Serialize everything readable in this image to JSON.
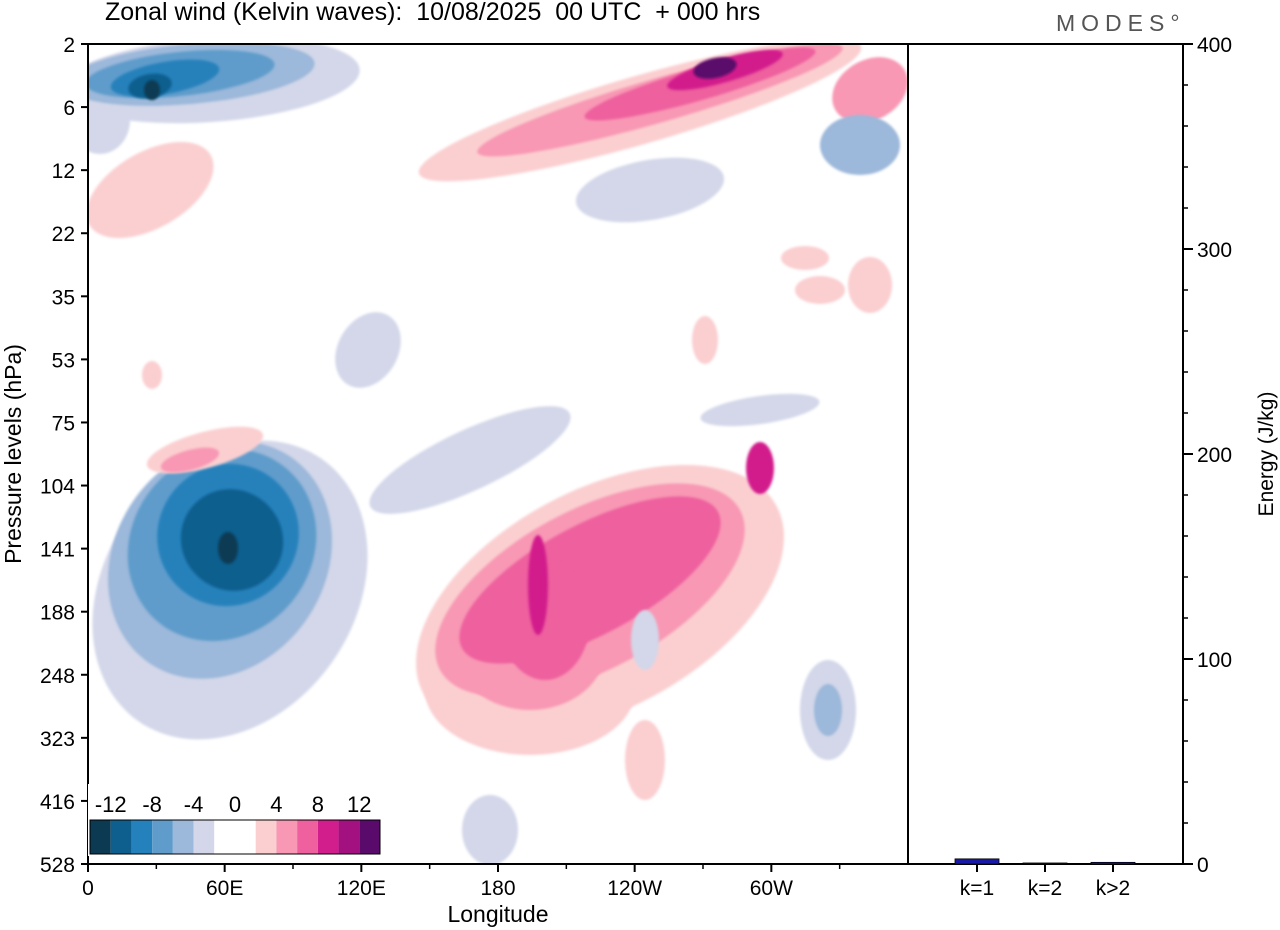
{
  "chart_data": [
    {
      "type": "heatmap",
      "title": "Zonal wind (Kelvin waves):  10/08/2025  00 UTC  + 000 hrs",
      "xlabel": "Longitude",
      "ylabel": "Pressure levels (hPa)",
      "x_ticks": [
        "0",
        "60E",
        "120E",
        "180",
        "120W",
        "60W"
      ],
      "x_tick_degrees": [
        0,
        60,
        120,
        180,
        240,
        300
      ],
      "x_range": [
        0,
        360
      ],
      "y_ticks": [
        "2",
        "6",
        "12",
        "22",
        "35",
        "53",
        "75",
        "104",
        "141",
        "188",
        "248",
        "323",
        "416",
        "528"
      ],
      "colorbar": {
        "labels": [
          "-12",
          "-8",
          "-4",
          "0",
          "4",
          "8",
          "12"
        ],
        "levels": [
          -14,
          -12,
          -10,
          -8,
          -6,
          -4,
          -2,
          0,
          2,
          4,
          6,
          8,
          10,
          12,
          14
        ],
        "colors": [
          "#0b3a52",
          "#0f5f8e",
          "#2581bb",
          "#5f9ccb",
          "#9cb8da",
          "#d3d7e9",
          "#ffffff",
          "#ffffff",
          "#fbcfd0",
          "#f898b4",
          "#ee609e",
          "#d21d8c",
          "#a3107f",
          "#5a0a6b"
        ]
      },
      "features": [
        {
          "name": "upper-easterly-band",
          "value": -10,
          "lon": [
            5,
            130
          ],
          "level": [
            2,
            6
          ]
        },
        {
          "name": "upper-westerly-band",
          "value": 12,
          "lon": [
            160,
            355
          ],
          "level": [
            2,
            12
          ]
        },
        {
          "name": "lower-easterly-cell",
          "value": -13,
          "lon": [
            20,
            110
          ],
          "level": [
            104,
            248
          ]
        },
        {
          "name": "lower-westerly-cell",
          "value": 10,
          "lon": [
            150,
            330
          ],
          "level": [
            104,
            323
          ]
        }
      ]
    },
    {
      "type": "bar",
      "ylabel": "Energy (J/kg)",
      "categories": [
        "k=1",
        "k=2",
        "k>2"
      ],
      "values": [
        2.5,
        0.5,
        0.8
      ],
      "ylim": [
        0,
        400
      ],
      "y_ticks": [
        "0",
        "100",
        "200",
        "300",
        "400"
      ],
      "y_tick_values": [
        0,
        100,
        200,
        300,
        400
      ],
      "bar_color": "#1a1aa8"
    }
  ],
  "brand": "MODES°"
}
